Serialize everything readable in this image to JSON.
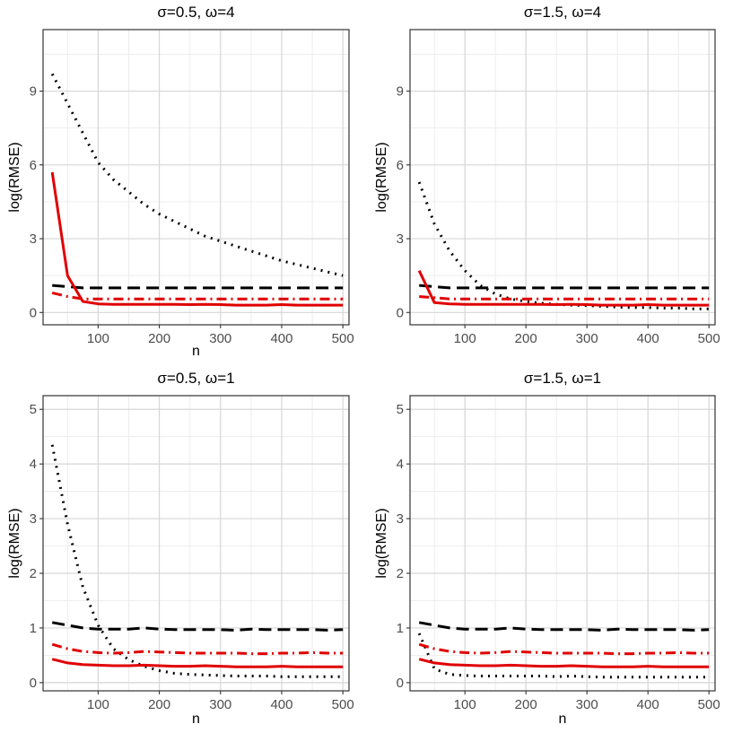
{
  "chart_data": [
    {
      "type": "line",
      "title": "σ=0.5, ω=4",
      "xlabel": "n",
      "ylabel": "log(RMSE)",
      "xlim": [
        10,
        510
      ],
      "ylim": [
        -0.5,
        11.5
      ],
      "xticks": [
        100,
        200,
        300,
        400,
        500
      ],
      "yticks": [
        0,
        3,
        6,
        9
      ],
      "x": [
        25,
        50,
        75,
        100,
        125,
        150,
        175,
        200,
        225,
        250,
        275,
        300,
        325,
        350,
        375,
        400,
        425,
        450,
        475,
        500
      ],
      "series": [
        {
          "name": "dashed-black",
          "color": "#000000",
          "style": "dashed",
          "values": [
            1.1,
            1.05,
            1.0,
            1.0,
            1.0,
            1.0,
            1.0,
            1.0,
            1.0,
            1.0,
            1.0,
            1.0,
            1.0,
            1.0,
            1.0,
            1.0,
            1.0,
            1.0,
            1.0,
            1.0
          ]
        },
        {
          "name": "dotted-black",
          "color": "#000000",
          "style": "dotted",
          "values": [
            9.7,
            8.5,
            7.3,
            6.1,
            5.4,
            4.9,
            4.4,
            4.0,
            3.7,
            3.4,
            3.1,
            2.9,
            2.7,
            2.5,
            2.3,
            2.1,
            1.95,
            1.8,
            1.65,
            1.5
          ]
        },
        {
          "name": "dashdot-red",
          "color": "#e00000",
          "style": "dashdot",
          "values": [
            0.8,
            0.65,
            0.55,
            0.55,
            0.55,
            0.55,
            0.55,
            0.55,
            0.55,
            0.55,
            0.55,
            0.55,
            0.55,
            0.55,
            0.55,
            0.55,
            0.55,
            0.55,
            0.55,
            0.55
          ]
        },
        {
          "name": "solid-red",
          "color": "#e00000",
          "style": "solid",
          "values": [
            5.7,
            1.5,
            0.45,
            0.35,
            0.33,
            0.33,
            0.33,
            0.33,
            0.33,
            0.32,
            0.33,
            0.32,
            0.3,
            0.3,
            0.3,
            0.32,
            0.3,
            0.3,
            0.3,
            0.3
          ]
        }
      ]
    },
    {
      "type": "line",
      "title": "σ=1.5, ω=4",
      "xlabel": "",
      "ylabel": "log(RMSE)",
      "xlim": [
        10,
        510
      ],
      "ylim": [
        -0.5,
        11.5
      ],
      "xticks": [
        100,
        200,
        300,
        400,
        500
      ],
      "yticks": [
        0,
        3,
        6,
        9
      ],
      "x": [
        25,
        50,
        75,
        100,
        125,
        150,
        175,
        200,
        225,
        250,
        275,
        300,
        325,
        350,
        375,
        400,
        425,
        450,
        475,
        500
      ],
      "series": [
        {
          "name": "dashed-black",
          "color": "#000000",
          "style": "dashed",
          "values": [
            1.1,
            1.05,
            1.0,
            1.0,
            1.0,
            1.0,
            1.0,
            1.0,
            1.0,
            1.0,
            1.0,
            1.0,
            1.0,
            1.0,
            1.0,
            1.0,
            1.0,
            1.0,
            1.0,
            1.0
          ]
        },
        {
          "name": "dotted-black",
          "color": "#000000",
          "style": "dotted",
          "values": [
            5.3,
            3.6,
            2.5,
            1.7,
            1.1,
            0.75,
            0.55,
            0.45,
            0.38,
            0.33,
            0.3,
            0.28,
            0.25,
            0.22,
            0.2,
            0.2,
            0.18,
            0.18,
            0.15,
            0.15
          ]
        },
        {
          "name": "dashdot-red",
          "color": "#e00000",
          "style": "dashdot",
          "values": [
            0.65,
            0.6,
            0.55,
            0.55,
            0.55,
            0.55,
            0.55,
            0.55,
            0.55,
            0.55,
            0.55,
            0.55,
            0.55,
            0.55,
            0.55,
            0.55,
            0.55,
            0.55,
            0.55,
            0.55
          ]
        },
        {
          "name": "solid-red",
          "color": "#e00000",
          "style": "solid",
          "values": [
            1.7,
            0.4,
            0.35,
            0.33,
            0.33,
            0.33,
            0.33,
            0.33,
            0.33,
            0.32,
            0.33,
            0.32,
            0.3,
            0.3,
            0.3,
            0.32,
            0.3,
            0.3,
            0.3,
            0.3
          ]
        }
      ]
    },
    {
      "type": "line",
      "title": "σ=0.5, ω=1",
      "xlabel": "n",
      "ylabel": "log(RMSE)",
      "xlim": [
        10,
        510
      ],
      "ylim": [
        -0.15,
        5.25
      ],
      "xticks": [
        100,
        200,
        300,
        400,
        500
      ],
      "yticks": [
        0,
        1,
        2,
        3,
        4,
        5
      ],
      "x": [
        25,
        50,
        75,
        100,
        125,
        150,
        175,
        200,
        225,
        250,
        275,
        300,
        325,
        350,
        375,
        400,
        425,
        450,
        475,
        500
      ],
      "series": [
        {
          "name": "dashed-black",
          "color": "#000000",
          "style": "dashed",
          "values": [
            1.1,
            1.05,
            1.0,
            0.98,
            0.98,
            0.98,
            1.0,
            0.98,
            0.97,
            0.97,
            0.97,
            0.97,
            0.96,
            0.98,
            0.97,
            0.97,
            0.97,
            0.97,
            0.96,
            0.97
          ]
        },
        {
          "name": "dotted-black",
          "color": "#000000",
          "style": "dotted",
          "values": [
            4.35,
            2.9,
            1.75,
            1.05,
            0.62,
            0.42,
            0.3,
            0.22,
            0.17,
            0.15,
            0.14,
            0.13,
            0.12,
            0.12,
            0.12,
            0.11,
            0.11,
            0.11,
            0.11,
            0.11
          ]
        },
        {
          "name": "dashdot-red",
          "color": "#e00000",
          "style": "dashdot",
          "values": [
            0.7,
            0.62,
            0.57,
            0.55,
            0.54,
            0.55,
            0.57,
            0.56,
            0.55,
            0.54,
            0.54,
            0.54,
            0.54,
            0.53,
            0.53,
            0.54,
            0.54,
            0.55,
            0.54,
            0.54
          ]
        },
        {
          "name": "solid-red",
          "color": "#e00000",
          "style": "solid",
          "values": [
            0.43,
            0.36,
            0.33,
            0.32,
            0.31,
            0.31,
            0.32,
            0.31,
            0.3,
            0.3,
            0.31,
            0.3,
            0.29,
            0.29,
            0.29,
            0.3,
            0.29,
            0.29,
            0.29,
            0.29
          ]
        }
      ]
    },
    {
      "type": "line",
      "title": "σ=1.5, ω=1",
      "xlabel": "n",
      "ylabel": "log(RMSE)",
      "xlim": [
        10,
        510
      ],
      "ylim": [
        -0.15,
        5.25
      ],
      "xticks": [
        100,
        200,
        300,
        400,
        500
      ],
      "yticks": [
        0,
        1,
        2,
        3,
        4,
        5
      ],
      "x": [
        25,
        50,
        75,
        100,
        125,
        150,
        175,
        200,
        225,
        250,
        275,
        300,
        325,
        350,
        375,
        400,
        425,
        450,
        475,
        500
      ],
      "series": [
        {
          "name": "dashed-black",
          "color": "#000000",
          "style": "dashed",
          "values": [
            1.1,
            1.05,
            1.0,
            0.98,
            0.98,
            0.98,
            1.0,
            0.98,
            0.97,
            0.97,
            0.97,
            0.97,
            0.96,
            0.98,
            0.97,
            0.97,
            0.97,
            0.97,
            0.96,
            0.97
          ]
        },
        {
          "name": "dotted-black",
          "color": "#000000",
          "style": "dotted",
          "values": [
            0.9,
            0.25,
            0.15,
            0.13,
            0.12,
            0.12,
            0.12,
            0.12,
            0.12,
            0.11,
            0.12,
            0.11,
            0.1,
            0.1,
            0.1,
            0.1,
            0.1,
            0.1,
            0.1,
            0.1
          ]
        },
        {
          "name": "dashdot-red",
          "color": "#e00000",
          "style": "dashdot",
          "values": [
            0.7,
            0.62,
            0.57,
            0.55,
            0.54,
            0.55,
            0.57,
            0.56,
            0.55,
            0.54,
            0.54,
            0.54,
            0.54,
            0.53,
            0.53,
            0.54,
            0.54,
            0.55,
            0.54,
            0.54
          ]
        },
        {
          "name": "solid-red",
          "color": "#e00000",
          "style": "solid",
          "values": [
            0.43,
            0.36,
            0.33,
            0.32,
            0.31,
            0.31,
            0.32,
            0.31,
            0.3,
            0.3,
            0.31,
            0.3,
            0.29,
            0.29,
            0.29,
            0.3,
            0.29,
            0.29,
            0.29,
            0.29
          ]
        }
      ]
    }
  ]
}
